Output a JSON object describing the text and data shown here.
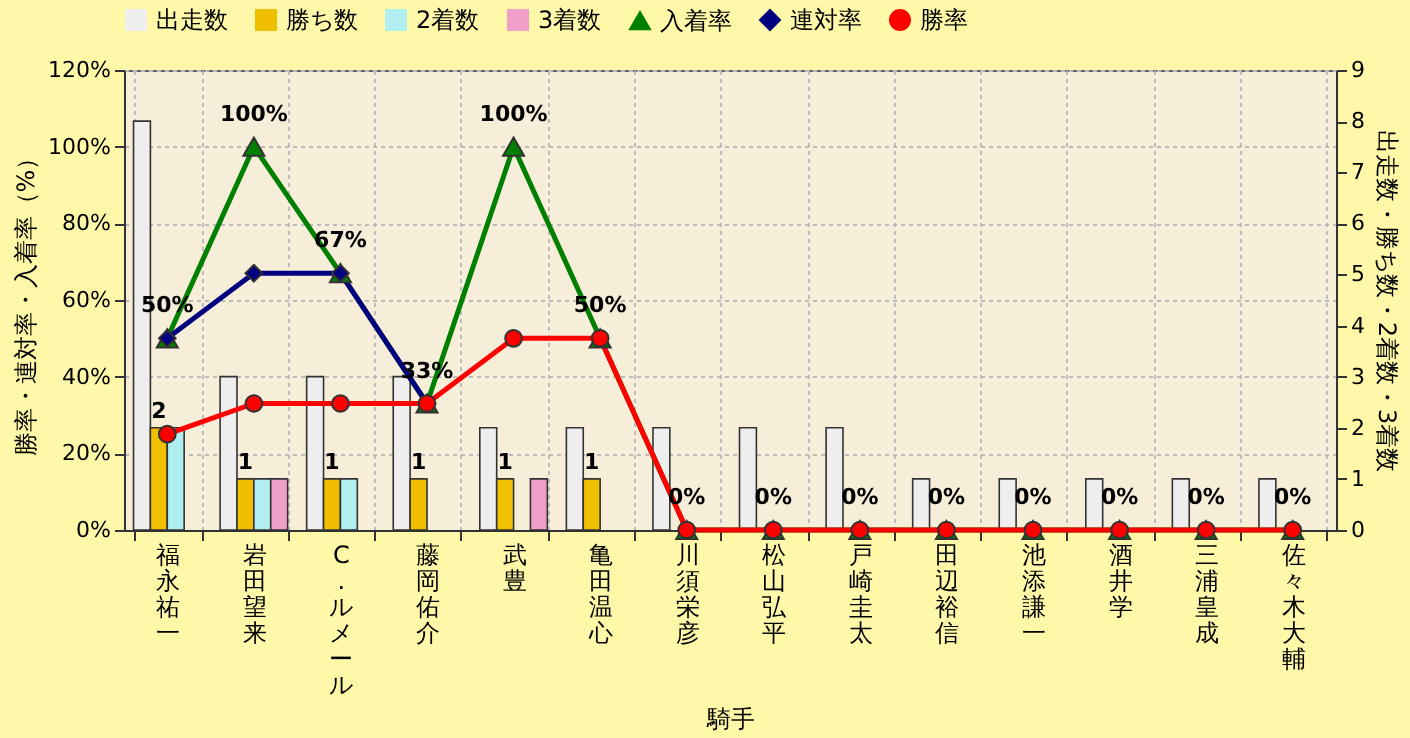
{
  "chart_data": {
    "type": "bar",
    "xlabel": "騎手",
    "ylabel": "勝率・連対率・入着率（%）",
    "y2label": "出走数・勝ち数・2着数・3着数",
    "categories": [
      "福永祐一",
      "岩田望来",
      "C.ルメール",
      "藤岡佑介",
      "武豊",
      "亀田温心",
      "川須栄彦",
      "松山弘平",
      "戸崎圭太",
      "田辺裕信",
      "池添謙一",
      "酒井学",
      "三浦皇成",
      "佐々木大輔"
    ],
    "series": [
      {
        "name": "出走数",
        "axis": "y2",
        "color": "#eeeeee",
        "values": [
          8,
          3,
          3,
          3,
          2,
          2,
          2,
          2,
          2,
          1,
          1,
          1,
          1,
          1
        ]
      },
      {
        "name": "勝ち数",
        "axis": "y2",
        "color": "#f0c000",
        "values": [
          2,
          1,
          1,
          1,
          1,
          1,
          0,
          0,
          0,
          0,
          0,
          0,
          0,
          0
        ],
        "value_labels": [
          "2",
          "1",
          "1",
          "1",
          "1",
          "1",
          null,
          null,
          null,
          null,
          null,
          null,
          null,
          null
        ]
      },
      {
        "name": "2着数",
        "axis": "y2",
        "color": "#b0eef0",
        "values": [
          2,
          1,
          1,
          0,
          0,
          0,
          0,
          0,
          0,
          0,
          0,
          0,
          0,
          0
        ]
      },
      {
        "name": "3着数",
        "axis": "y2",
        "color": "#f0a0c8",
        "values": [
          0,
          1,
          0,
          0,
          1,
          0,
          0,
          0,
          0,
          0,
          0,
          0,
          0,
          0
        ]
      },
      {
        "name": "入着率",
        "type": "line",
        "marker": "triangle",
        "color": "#008000",
        "values": [
          50,
          100,
          67,
          33,
          100,
          50,
          0,
          0,
          0,
          0,
          0,
          0,
          0,
          0
        ],
        "value_labels": [
          "50%",
          "100%",
          "67%",
          "33%",
          "100%",
          "50%",
          "0%",
          "0%",
          "0%",
          "0%",
          "0%",
          "0%",
          "0%",
          "0%"
        ]
      },
      {
        "name": "連対率",
        "type": "line",
        "marker": "diamond",
        "color": "#000080",
        "values": [
          50,
          67,
          67,
          33,
          null,
          null,
          null,
          null,
          null,
          null,
          null,
          null,
          null,
          null
        ]
      },
      {
        "name": "勝率",
        "type": "line",
        "marker": "circle",
        "color": "#ff0000",
        "values": [
          25,
          33,
          33,
          33,
          50,
          50,
          0,
          0,
          0,
          0,
          0,
          0,
          0,
          0
        ]
      }
    ],
    "ylim": [
      0,
      120
    ],
    "yticks": [
      {
        "value": 0,
        "label": "0%"
      },
      {
        "value": 20,
        "label": "20%"
      },
      {
        "value": 40,
        "label": "40%"
      },
      {
        "value": 60,
        "label": "60%"
      },
      {
        "value": 80,
        "label": "80%"
      },
      {
        "value": 100,
        "label": "100%"
      },
      {
        "value": 120,
        "label": "120%"
      }
    ],
    "y2lim": [
      0,
      9
    ],
    "y2ticks": [
      0,
      1,
      2,
      3,
      4,
      5,
      6,
      7,
      8,
      9
    ],
    "grid": true,
    "legend": "top"
  }
}
